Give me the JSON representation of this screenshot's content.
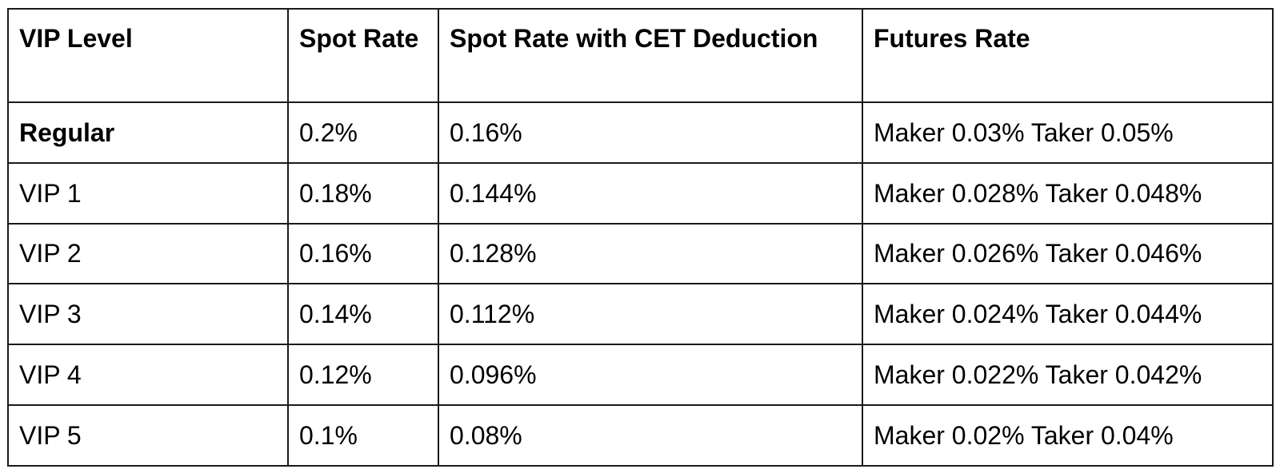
{
  "table": {
    "headers": {
      "vip_level": "VIP Level",
      "spot_rate": "Spot Rate",
      "spot_rate_cet": "Spot Rate with CET Deduction",
      "futures_rate": "Futures Rate"
    },
    "rows": [
      {
        "level": "Regular",
        "spot": "0.2%",
        "cet": "0.16%",
        "futures": "Maker 0.03% Taker 0.05%"
      },
      {
        "level": "VIP 1",
        "spot": "0.18%",
        "cet": "0.144%",
        "futures": "Maker 0.028% Taker 0.048%"
      },
      {
        "level": "VIP 2",
        "spot": "0.16%",
        "cet": "0.128%",
        "futures": "Maker 0.026% Taker 0.046%"
      },
      {
        "level": "VIP 3",
        "spot": "0.14%",
        "cet": "0.112%",
        "futures": "Maker 0.024% Taker 0.044%"
      },
      {
        "level": "VIP 4",
        "spot": "0.12%",
        "cet": "0.096%",
        "futures": "Maker 0.022% Taker 0.042%"
      },
      {
        "level": "VIP 5",
        "spot": "0.1%",
        "cet": "0.08%",
        "futures": "Maker 0.02% Taker 0.04%"
      }
    ]
  }
}
